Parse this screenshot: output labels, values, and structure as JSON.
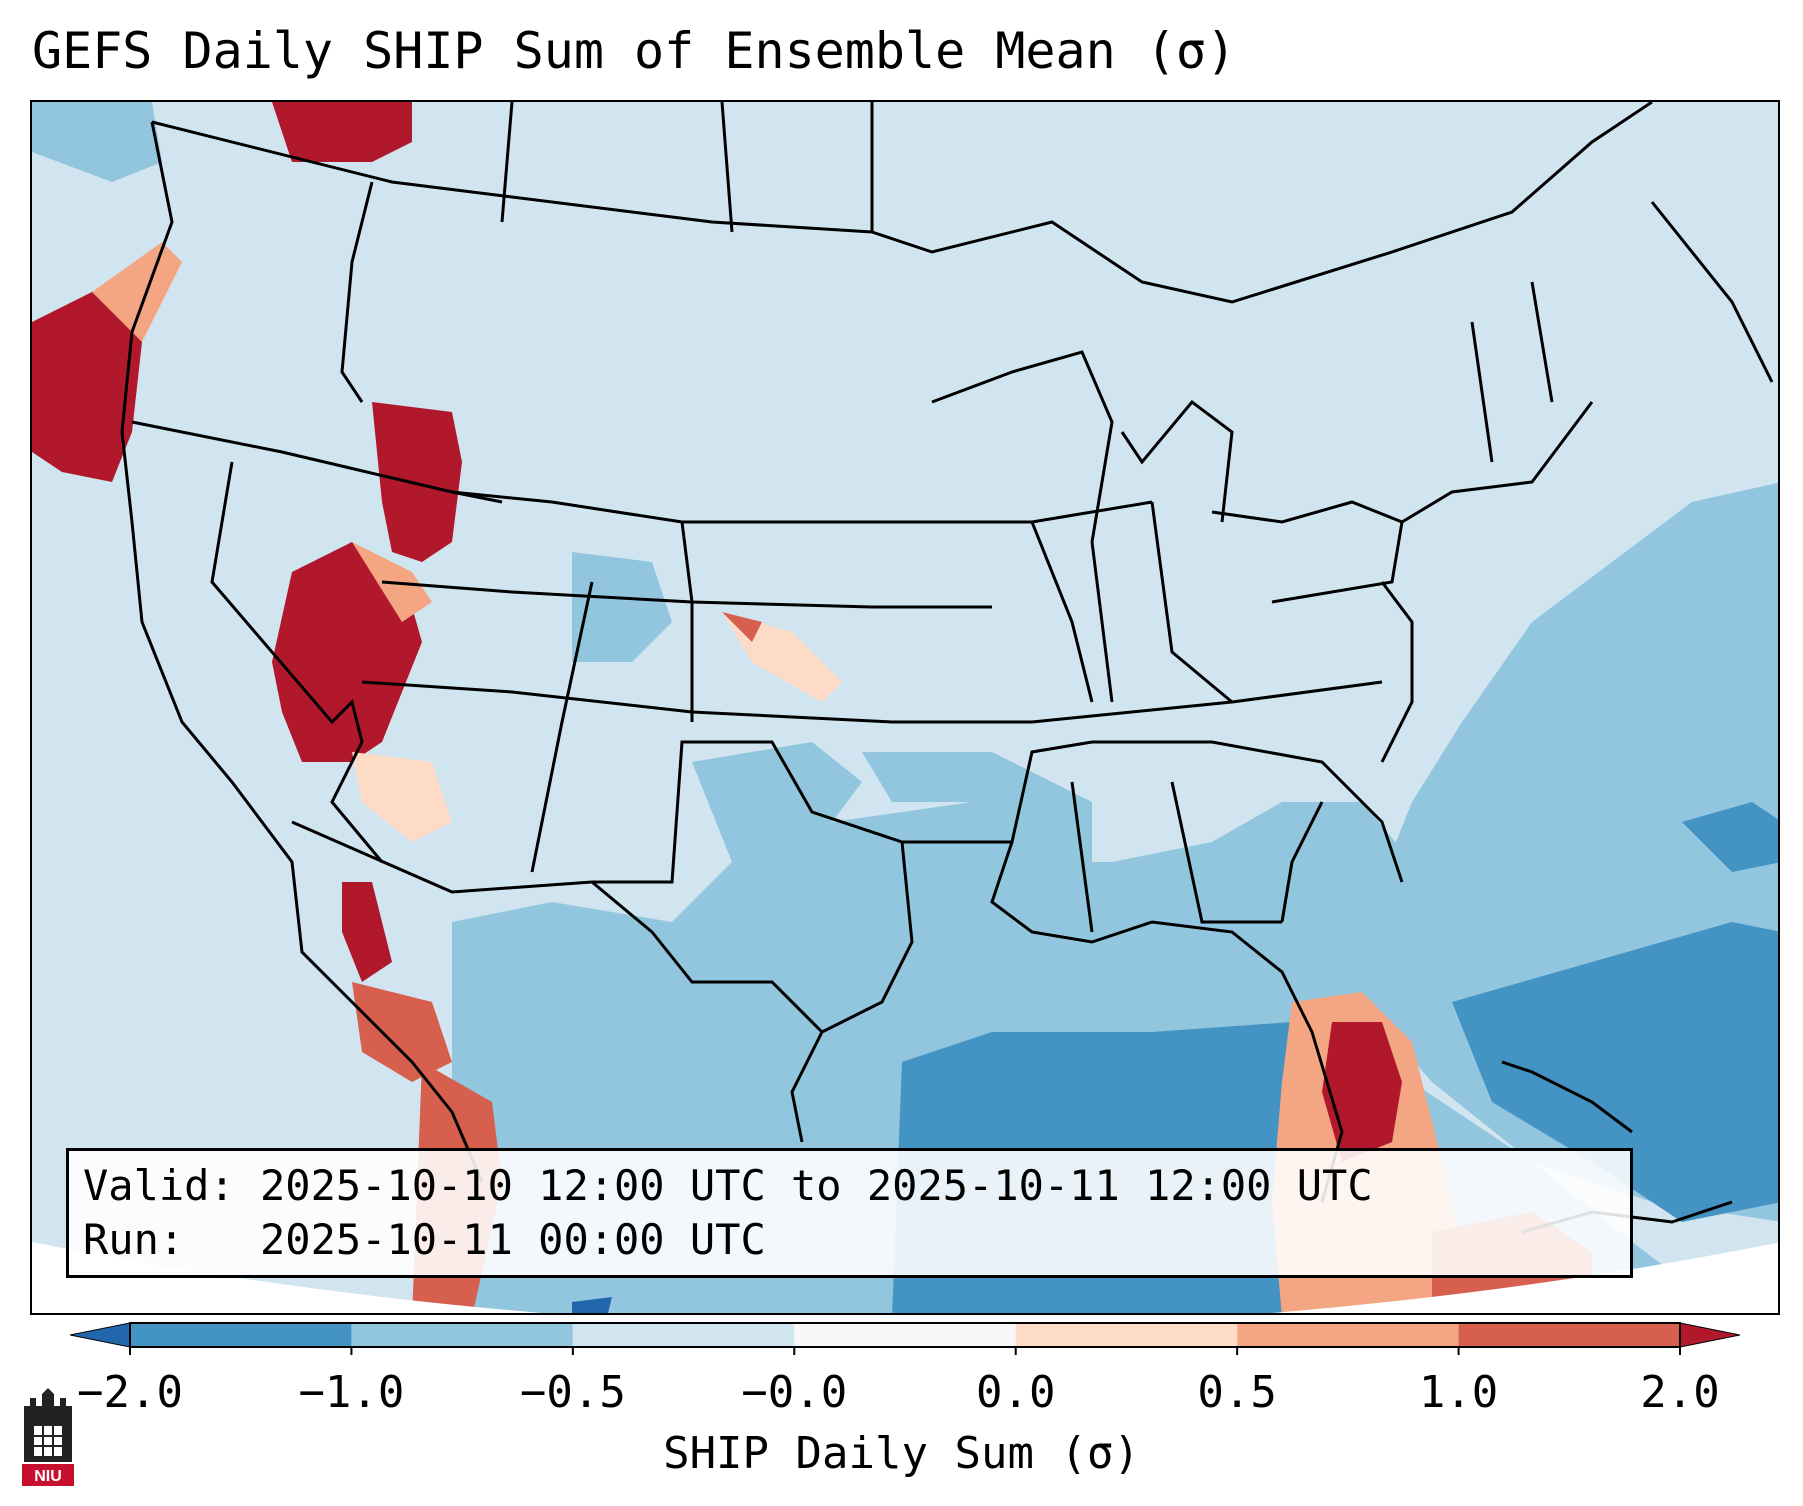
{
  "title": "GEFS Daily SHIP Sum of Ensemble Mean (σ)",
  "info": {
    "valid_label": "Valid:",
    "valid_value": "2025-10-10 12:00 UTC to 2025-10-11 12:00 UTC",
    "run_label": "Run:",
    "run_value": "2025-10-11 00:00 UTC"
  },
  "colorbar": {
    "label": "SHIP Daily Sum (σ)",
    "ticks": [
      "−2.0",
      "−1.0",
      "−0.5",
      "−0.0",
      "0.0",
      "0.5",
      "1.0",
      "2.0"
    ],
    "colors": [
      "#4393c3",
      "#92c5de",
      "#d1e5f0",
      "#f7f7f7",
      "#fddbc7",
      "#f4a582",
      "#d6604d"
    ],
    "under_color": "#2166ac",
    "over_color": "#b2182b"
  },
  "logo": {
    "text": "NIU"
  }
}
